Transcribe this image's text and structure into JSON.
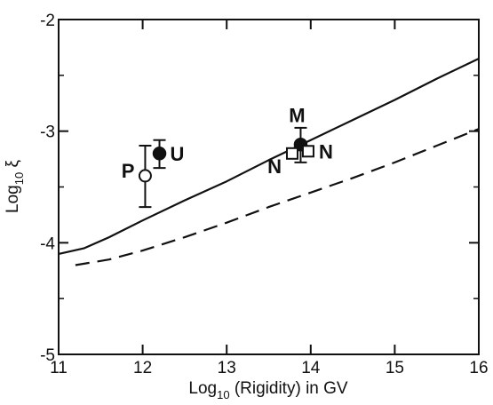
{
  "chart_data": {
    "type": "line",
    "title": "",
    "xlabel": "Log10 (Rigidity) in GV",
    "xlabel_parts": {
      "prefix": "Log",
      "sub": "10",
      "suffix": " (Rigidity) in GV"
    },
    "ylabel": "Log10 ξ",
    "ylabel_parts": {
      "prefix": "Log",
      "sub": "10",
      "suffix": " ξ"
    },
    "xlim": [
      11,
      16
    ],
    "ylim": [
      -5,
      -2
    ],
    "xticks": [
      11,
      12,
      13,
      14,
      15,
      16
    ],
    "xtick_labels": [
      "11",
      "12",
      "13",
      "14",
      "15",
      "16"
    ],
    "yticks": [
      -5,
      -4,
      -3,
      -2
    ],
    "ytick_labels": [
      "-5",
      "-4",
      "-3",
      "-2"
    ],
    "grid": false,
    "series": [
      {
        "style": "solid",
        "color": "#111111",
        "x": [
          11.0,
          11.3,
          11.6,
          12.0,
          12.5,
          13.0,
          13.5,
          14.0,
          14.5,
          15.0,
          15.5,
          16.0
        ],
        "y": [
          -4.1,
          -4.05,
          -3.95,
          -3.8,
          -3.62,
          -3.45,
          -3.26,
          -3.08,
          -2.9,
          -2.72,
          -2.53,
          -2.35
        ]
      },
      {
        "style": "dashed",
        "color": "#111111",
        "x": [
          11.2,
          11.6,
          12.0,
          12.5,
          13.0,
          13.5,
          14.0,
          14.5,
          15.0,
          15.5,
          16.0
        ],
        "y": [
          -4.2,
          -4.15,
          -4.07,
          -3.95,
          -3.82,
          -3.68,
          -3.55,
          -3.42,
          -3.28,
          -3.13,
          -2.98
        ]
      }
    ],
    "points": [
      {
        "label": "P",
        "x": 12.03,
        "y": -3.4,
        "y_low": -3.68,
        "y_high": -3.13,
        "marker": "open-circle",
        "label_side": "left"
      },
      {
        "label": "U",
        "x": 12.2,
        "y": -3.2,
        "y_low": -3.33,
        "y_high": -3.08,
        "marker": "filled-circle",
        "label_side": "right"
      },
      {
        "label": "M",
        "x": 13.88,
        "y": -3.12,
        "y_low": -3.28,
        "y_high": -2.97,
        "marker": "filled-circle",
        "label_side": "top"
      },
      {
        "label": "N",
        "x": 13.78,
        "y": -3.2,
        "y_low": -3.2,
        "y_high": -3.2,
        "marker": "open-square",
        "label_side": "bottom-left"
      },
      {
        "label": "N",
        "x": 13.97,
        "y": -3.18,
        "y_low": -3.18,
        "y_high": -3.18,
        "marker": "open-square",
        "label_side": "right"
      }
    ]
  }
}
